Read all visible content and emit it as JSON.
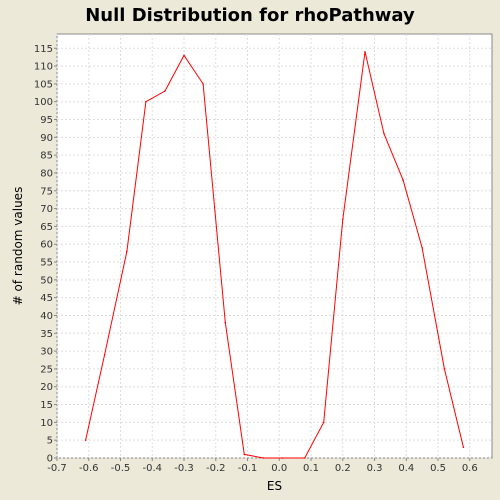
{
  "chart_data": {
    "type": "line",
    "title": "Null Distribution for rhoPathway",
    "xlabel": "ES",
    "ylabel": "# of random values",
    "xlim": [
      -0.7,
      0.67
    ],
    "ylim": [
      0,
      119
    ],
    "x_ticks": [
      "-0.7",
      "-0.6",
      "-0.5",
      "-0.4",
      "-0.3",
      "-0.2",
      "-0.1",
      "0.0",
      "0.1",
      "0.2",
      "0.3",
      "0.4",
      "0.5",
      "0.6"
    ],
    "y_ticks": [
      "0",
      "5",
      "10",
      "15",
      "20",
      "25",
      "30",
      "35",
      "40",
      "45",
      "50",
      "55",
      "60",
      "65",
      "70",
      "75",
      "80",
      "85",
      "90",
      "95",
      "100",
      "105",
      "110",
      "115"
    ],
    "grid": true,
    "series": [
      {
        "color": "#ff0000",
        "x": [
          -0.61,
          -0.55,
          -0.48,
          -0.42,
          -0.36,
          -0.3,
          -0.24,
          -0.17,
          -0.11,
          -0.05,
          0.01,
          0.08,
          0.14,
          0.2,
          0.27,
          0.33,
          0.39,
          0.45,
          0.52,
          0.58
        ],
        "y": [
          5,
          29,
          58,
          100,
          103,
          113,
          105,
          38,
          1,
          0,
          0,
          0,
          10,
          67,
          114,
          91,
          78,
          59,
          25,
          3
        ]
      }
    ]
  }
}
